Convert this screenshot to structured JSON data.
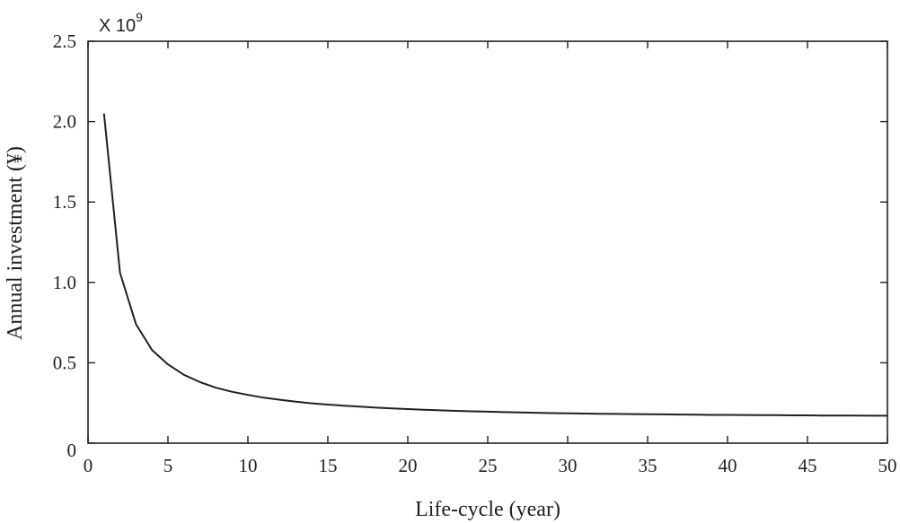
{
  "chart_data": {
    "type": "line",
    "xlabel": "Life-cycle (year)",
    "ylabel": "Annual investment (¥)",
    "y_multiplier_base": "X 10",
    "y_multiplier_exponent": "9",
    "xlim": [
      0,
      50
    ],
    "ylim": [
      0,
      2.5
    ],
    "x_ticks": [
      0,
      5,
      10,
      15,
      20,
      25,
      30,
      35,
      40,
      45,
      50
    ],
    "x_tick_labels": [
      "0",
      "5",
      "10",
      "15",
      "20",
      "25",
      "30",
      "35",
      "40",
      "45",
      "50"
    ],
    "y_ticks": [
      0,
      0.5,
      1.0,
      1.5,
      2.0,
      2.5
    ],
    "y_tick_labels": [
      "0",
      "0.5",
      "1.0",
      "1.5",
      "2.0",
      "2.5"
    ],
    "grid": false,
    "colors": {
      "line": "#231f20",
      "axes": "#231f20"
    },
    "series": [
      {
        "x": [
          1,
          2,
          3,
          4,
          5,
          6,
          7,
          8,
          9,
          10,
          11,
          12,
          13,
          14,
          15,
          16,
          17,
          18,
          19,
          20,
          21,
          22,
          23,
          24,
          25,
          26,
          27,
          28,
          29,
          30,
          31,
          32,
          33,
          34,
          35,
          36,
          37,
          38,
          39,
          40,
          41,
          42,
          43,
          44,
          45,
          46,
          47,
          48,
          49,
          50
        ],
        "values": [
          2.05,
          1.06,
          0.74,
          0.58,
          0.49,
          0.425,
          0.38,
          0.345,
          0.32,
          0.3,
          0.283,
          0.27,
          0.258,
          0.248,
          0.24,
          0.233,
          0.227,
          0.221,
          0.216,
          0.212,
          0.208,
          0.204,
          0.201,
          0.198,
          0.196,
          0.193,
          0.191,
          0.189,
          0.187,
          0.186,
          0.184,
          0.183,
          0.182,
          0.181,
          0.18,
          0.179,
          0.178,
          0.177,
          0.176,
          0.176,
          0.175,
          0.174,
          0.174,
          0.173,
          0.173,
          0.172,
          0.172,
          0.172,
          0.171,
          0.171
        ]
      }
    ]
  }
}
